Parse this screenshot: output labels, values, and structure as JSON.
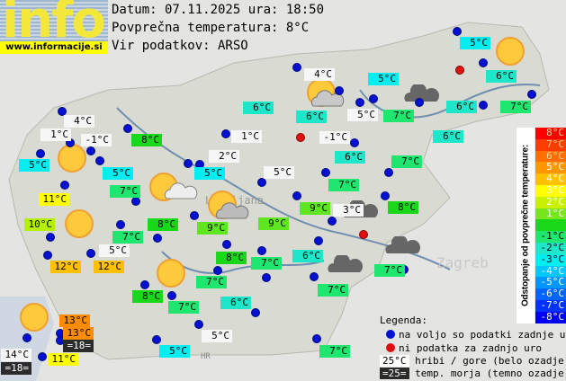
{
  "header": {
    "date_line": "Datum: 07.11.2025 ura: 18:50",
    "avg_line": "Povprečna temperatura: 8°C",
    "source_line": "Vir podatkov: ARSO",
    "logo": "info",
    "url": "www.informacije.si"
  },
  "labels": [
    "4°C",
    "1°C",
    "-1°C",
    "5°C",
    "8°C",
    "1°C",
    "5°C",
    "2°C",
    "5°C",
    "7°C",
    "11°C",
    "10°C",
    "8°C",
    "9°C",
    "7°C",
    "5°C",
    "12°C",
    "12°C",
    "4°C",
    "5°C",
    "6°C",
    "5°C",
    "7°C",
    "6°C",
    "-1°C",
    "6°C",
    "6°C",
    "7°C",
    "5°C",
    "7°C",
    "9°C",
    "3°C",
    "8°C",
    "9°C",
    "6°C",
    "7°C",
    "5°C",
    "6°C",
    "6°C",
    "7°C",
    "8°C",
    "7°C",
    "7°C",
    "8°C",
    "7°C",
    "6°C",
    "7°C",
    "13°C",
    "13°C",
    "=18=",
    "14°C",
    "=18=",
    "11°C",
    "5°C",
    "5°C",
    "7°C"
  ],
  "scale": {
    "title": "Odstopanje od povprečne temperature:",
    "steps": [
      "8°C",
      "7°C",
      "6°C",
      "5°C",
      "4°C",
      "3°C",
      "2°C",
      "1°C",
      "",
      "-1°C",
      "-2°C",
      "-3°C",
      "-4°C",
      "-5°C",
      "-6°C",
      "-7°C",
      "-8°C"
    ],
    "colors": [
      "#ff0000",
      "#ff3c00",
      "#ff6e00",
      "#ff9600",
      "#ffc000",
      "#ffff00",
      "#c8f000",
      "#78e61e",
      "#19d819",
      "#1ee66e",
      "#1ee6c8",
      "#00eef0",
      "#00c8ff",
      "#0096ff",
      "#0064ff",
      "#0032ff",
      "#0000f0"
    ]
  },
  "legend": {
    "title": "Legenda:",
    "available": "na voljo so podatki zadnje ure",
    "missing": "ni podatka za zadnjo uro",
    "sample_mountain": "25°C",
    "mountain": "hribi / gore (belo ozadje)",
    "sample_sea": "=25=",
    "sea": "temp. morja (temno ozadje)"
  },
  "map_labels": {
    "city": "Ljubljana",
    "zagreb": "Zagreb",
    "hr": "HR"
  }
}
